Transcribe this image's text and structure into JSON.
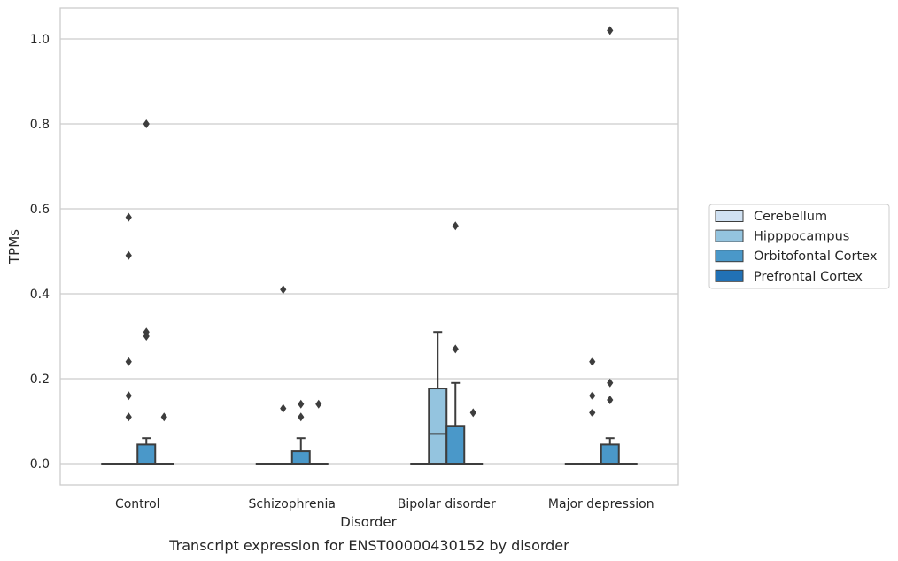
{
  "chart_data": {
    "type": "box",
    "caption": "Transcript expression for ENST00000430152 by disorder",
    "xlabel": "Disorder",
    "ylabel": "TPMs",
    "ylim": [
      -0.05,
      1.075
    ],
    "yticks": [
      0.0,
      0.2,
      0.4,
      0.6,
      0.8,
      1.0
    ],
    "ytick_labels": [
      "0.0",
      "0.2",
      "0.4",
      "0.6",
      "0.8",
      "1.0"
    ],
    "grid": "horizontal",
    "legend_position": "right",
    "categories": [
      "Control",
      "Schizophrenia",
      "Bipolar disorder",
      "Major depression"
    ],
    "series": [
      {
        "name": "Cerebellum",
        "color": "#d0e1f2",
        "boxes": [
          {
            "category": "Control",
            "q1": 0.0,
            "median": 0.0,
            "q3": 0.0,
            "whisker_low": 0.0,
            "whisker_high": 0.0,
            "outliers": []
          },
          {
            "category": "Schizophrenia",
            "q1": 0.0,
            "median": 0.0,
            "q3": 0.0,
            "whisker_low": 0.0,
            "whisker_high": 0.0,
            "outliers": []
          },
          {
            "category": "Bipolar disorder",
            "q1": 0.0,
            "median": 0.0,
            "q3": 0.0,
            "whisker_low": 0.0,
            "whisker_high": 0.0,
            "outliers": []
          },
          {
            "category": "Major depression",
            "q1": 0.0,
            "median": 0.0,
            "q3": 0.0,
            "whisker_low": 0.0,
            "whisker_high": 0.0,
            "outliers": []
          }
        ]
      },
      {
        "name": "Hipppocampus",
        "color": "#94c4df",
        "boxes": [
          {
            "category": "Control",
            "q1": 0.0,
            "median": 0.0,
            "q3": 0.0,
            "whisker_low": 0.0,
            "whisker_high": 0.0,
            "outliers": [
              0.11,
              0.16,
              0.24,
              0.49,
              0.58
            ]
          },
          {
            "category": "Schizophrenia",
            "q1": 0.0,
            "median": 0.0,
            "q3": 0.0,
            "whisker_low": 0.0,
            "whisker_high": 0.0,
            "outliers": [
              0.13,
              0.41
            ]
          },
          {
            "category": "Bipolar disorder",
            "q1": 0.0,
            "median": 0.07,
            "q3": 0.177,
            "whisker_low": 0.0,
            "whisker_high": 0.31,
            "outliers": []
          },
          {
            "category": "Major depression",
            "q1": 0.0,
            "median": 0.0,
            "q3": 0.0,
            "whisker_low": 0.0,
            "whisker_high": 0.0,
            "outliers": [
              0.12,
              0.16,
              0.24
            ]
          }
        ]
      },
      {
        "name": "Orbitofontal Cortex",
        "color": "#4a98c9",
        "boxes": [
          {
            "category": "Control",
            "q1": 0.0,
            "median": 0.0,
            "q3": 0.045,
            "whisker_low": 0.0,
            "whisker_high": 0.06,
            "outliers": [
              0.3,
              0.31,
              0.8
            ]
          },
          {
            "category": "Schizophrenia",
            "q1": 0.0,
            "median": 0.0,
            "q3": 0.029,
            "whisker_low": 0.0,
            "whisker_high": 0.06,
            "outliers": [
              0.11,
              0.14
            ]
          },
          {
            "category": "Bipolar disorder",
            "q1": 0.0,
            "median": 0.0,
            "q3": 0.089,
            "whisker_low": 0.0,
            "whisker_high": 0.19,
            "outliers": [
              0.27,
              0.56
            ]
          },
          {
            "category": "Major depression",
            "q1": 0.0,
            "median": 0.0,
            "q3": 0.045,
            "whisker_low": 0.0,
            "whisker_high": 0.06,
            "outliers": [
              0.15,
              0.19,
              1.02
            ]
          }
        ]
      },
      {
        "name": "Prefrontal Cortex",
        "color": "#2171b5",
        "boxes": [
          {
            "category": "Control",
            "q1": 0.0,
            "median": 0.0,
            "q3": 0.0,
            "whisker_low": 0.0,
            "whisker_high": 0.0,
            "outliers": [
              0.11
            ]
          },
          {
            "category": "Schizophrenia",
            "q1": 0.0,
            "median": 0.0,
            "q3": 0.0,
            "whisker_low": 0.0,
            "whisker_high": 0.0,
            "outliers": [
              0.14
            ]
          },
          {
            "category": "Bipolar disorder",
            "q1": 0.0,
            "median": 0.0,
            "q3": 0.0,
            "whisker_low": 0.0,
            "whisker_high": 0.0,
            "outliers": [
              0.12
            ]
          },
          {
            "category": "Major depression",
            "q1": 0.0,
            "median": 0.0,
            "q3": 0.0,
            "whisker_low": 0.0,
            "whisker_high": 0.0,
            "outliers": []
          }
        ]
      }
    ]
  }
}
